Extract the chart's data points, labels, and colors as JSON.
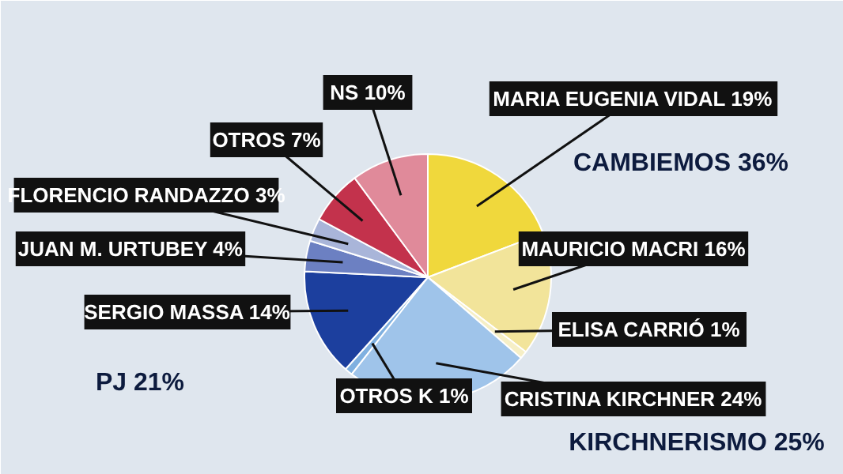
{
  "chart_data": {
    "type": "pie",
    "categories": [
      "MARIA EUGENIA VIDAL",
      "MAURICIO MACRI",
      "ELISA CARRIÓ",
      "CRISTINA KIRCHNER",
      "OTROS K",
      "SERGIO MASSA",
      "JUAN M. URTUBEY",
      "FLORENCIO RANDAZZO",
      "OTROS",
      "NS"
    ],
    "values": [
      19,
      16,
      1,
      24,
      1,
      14,
      4,
      3,
      7,
      10
    ],
    "value_labels": [
      "19%",
      "16%",
      "1%",
      "24%",
      "1%",
      "14%",
      "4%",
      "3%",
      "7%",
      "10%"
    ],
    "colors": [
      "#f0d83c",
      "#f2e49a",
      "#f6efc6",
      "#9fc4ea",
      "#7fb0e0",
      "#1c3f9e",
      "#6c80c2",
      "#a9b5d9",
      "#c3324c",
      "#e08a9a"
    ],
    "annotations": [
      "CAMBIEMOS 36%",
      "KIRCHNERISMO 25%",
      "PJ 21%"
    ]
  }
}
